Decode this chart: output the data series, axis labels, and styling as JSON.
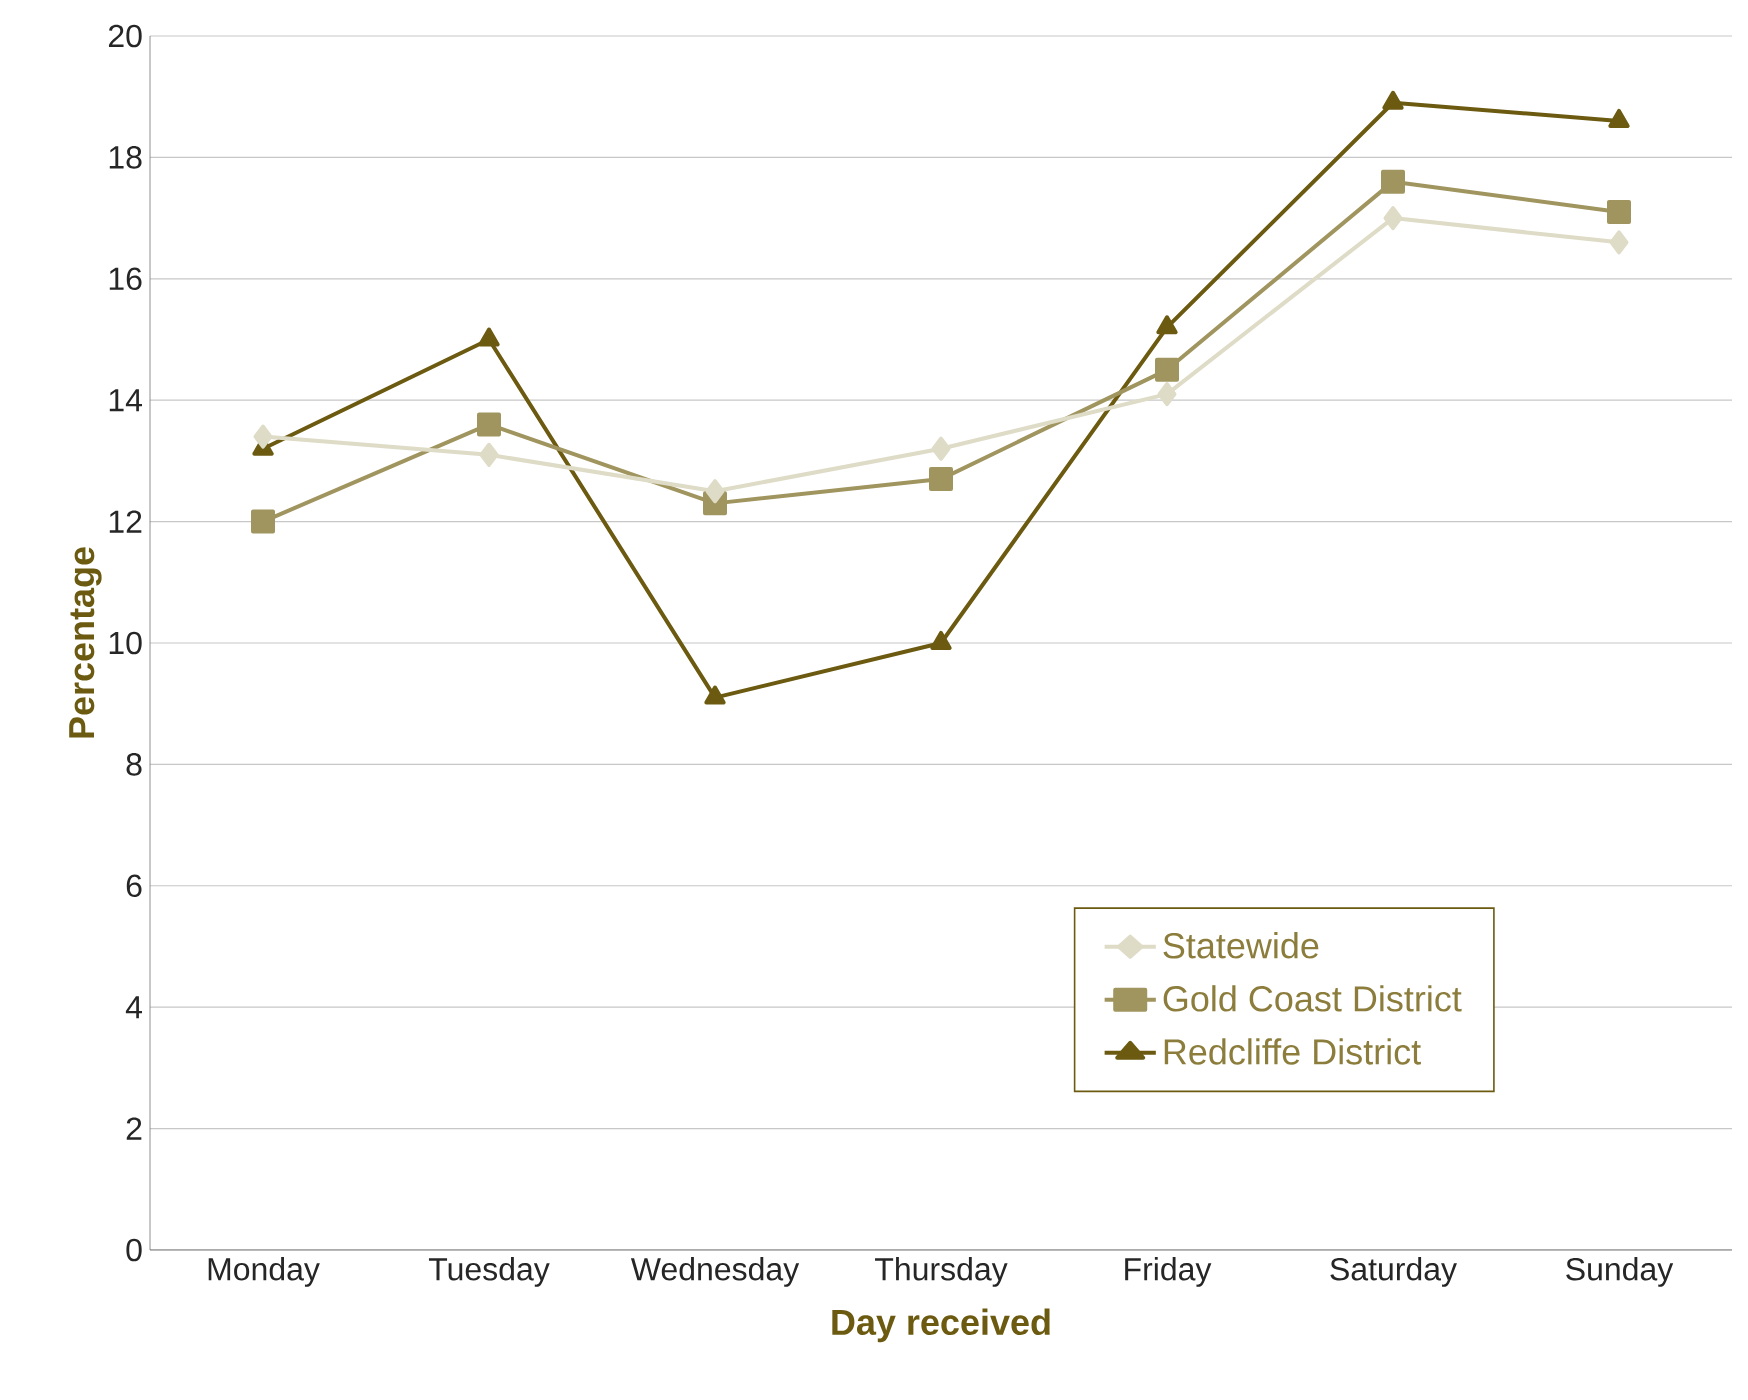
{
  "chart_data": {
    "type": "line",
    "xlabel": "Day received",
    "ylabel": "Percentage",
    "categories": [
      "Monday",
      "Tuesday",
      "Wednesday",
      "Thursday",
      "Friday",
      "Saturday",
      "Sunday"
    ],
    "series": [
      {
        "name": "Statewide",
        "color": "#dedbc6",
        "marker": "diamond",
        "values": [
          13.4,
          13.1,
          12.5,
          13.2,
          14.1,
          17.0,
          16.6
        ]
      },
      {
        "name": "Gold Coast District",
        "color": "#a0955f",
        "marker": "square",
        "values": [
          12.0,
          13.6,
          12.3,
          12.7,
          14.5,
          17.6,
          17.1
        ]
      },
      {
        "name": "Redcliffe District",
        "color": "#6b5a10",
        "marker": "triangle",
        "values": [
          13.2,
          15.0,
          9.1,
          10.0,
          15.2,
          18.9,
          18.6
        ]
      }
    ],
    "ylim": [
      0,
      20
    ],
    "yticks": [
      0,
      2,
      4,
      6,
      8,
      10,
      12,
      14,
      16,
      18,
      20
    ],
    "grid": "y",
    "legend": "bottom right"
  }
}
